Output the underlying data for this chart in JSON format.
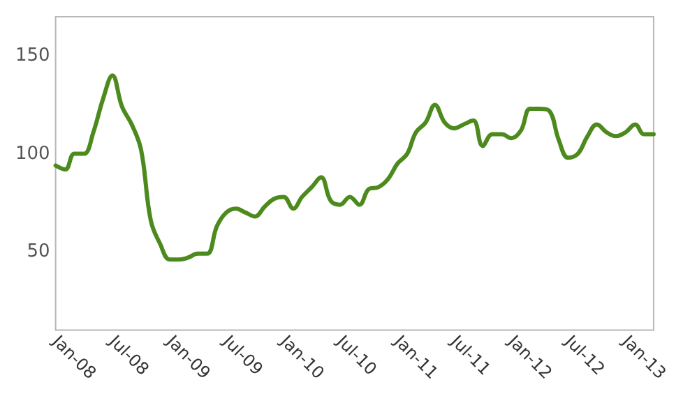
{
  "chart_data": {
    "type": "line",
    "x": [
      "2008-01",
      "2008-02",
      "2008-03",
      "2008-04",
      "2008-05",
      "2008-06",
      "2008-07",
      "2008-08",
      "2008-09",
      "2008-10",
      "2008-11",
      "2008-12",
      "2009-01",
      "2009-02",
      "2009-03",
      "2009-04",
      "2009-05",
      "2009-06",
      "2009-07",
      "2009-08",
      "2009-09",
      "2009-10",
      "2009-11",
      "2009-12",
      "2010-01",
      "2010-02",
      "2010-03",
      "2010-04",
      "2010-05",
      "2010-06",
      "2010-07",
      "2010-08",
      "2010-09",
      "2010-10",
      "2010-11",
      "2010-12",
      "2011-01",
      "2011-02",
      "2011-03",
      "2011-04",
      "2011-05",
      "2011-06",
      "2011-07",
      "2011-08",
      "2011-09",
      "2011-10",
      "2011-11",
      "2011-12",
      "2012-01",
      "2012-02",
      "2012-03",
      "2012-04",
      "2012-05",
      "2012-06",
      "2012-07",
      "2012-08",
      "2012-09",
      "2012-10",
      "2012-11",
      "2012-12",
      "2013-01",
      "2013-02",
      "2013-03",
      "2013-04"
    ],
    "series": [
      {
        "color": "#4d8a1e",
        "values": [
          94,
          92,
          100,
          100,
          111,
          128,
          140,
          124,
          115,
          102,
          66,
          54,
          46,
          46,
          47,
          49,
          49,
          63,
          70,
          72,
          70,
          68,
          73,
          77,
          78,
          72,
          78,
          83,
          88,
          76,
          74,
          78,
          74,
          82,
          83,
          87,
          95,
          100,
          111,
          116,
          125,
          116,
          113,
          115,
          117,
          104,
          110,
          110,
          108,
          112,
          123,
          123,
          122,
          107,
          98,
          100,
          109,
          115,
          111,
          109,
          111,
          115,
          110,
          110
        ]
      }
    ],
    "xlim": [
      "2008-01",
      "2013-04"
    ],
    "xticks": [
      {
        "value": "2008-01",
        "label": "Jan-08"
      },
      {
        "value": "2008-07",
        "label": "Jul-08"
      },
      {
        "value": "2009-01",
        "label": "Jan-09"
      },
      {
        "value": "2009-07",
        "label": "Jul-09"
      },
      {
        "value": "2010-01",
        "label": "Jan-10"
      },
      {
        "value": "2010-07",
        "label": "Jul-10"
      },
      {
        "value": "2011-01",
        "label": "Jan-11"
      },
      {
        "value": "2011-07",
        "label": "Jul-11"
      },
      {
        "value": "2012-01",
        "label": "Jan-12"
      },
      {
        "value": "2012-07",
        "label": "Jul-12"
      },
      {
        "value": "2013-01",
        "label": "Jan-13"
      }
    ],
    "ylim": [
      10,
      170
    ],
    "yticks": [
      50,
      100,
      150
    ],
    "grid": false,
    "marker": "none",
    "line_style": "solid"
  }
}
